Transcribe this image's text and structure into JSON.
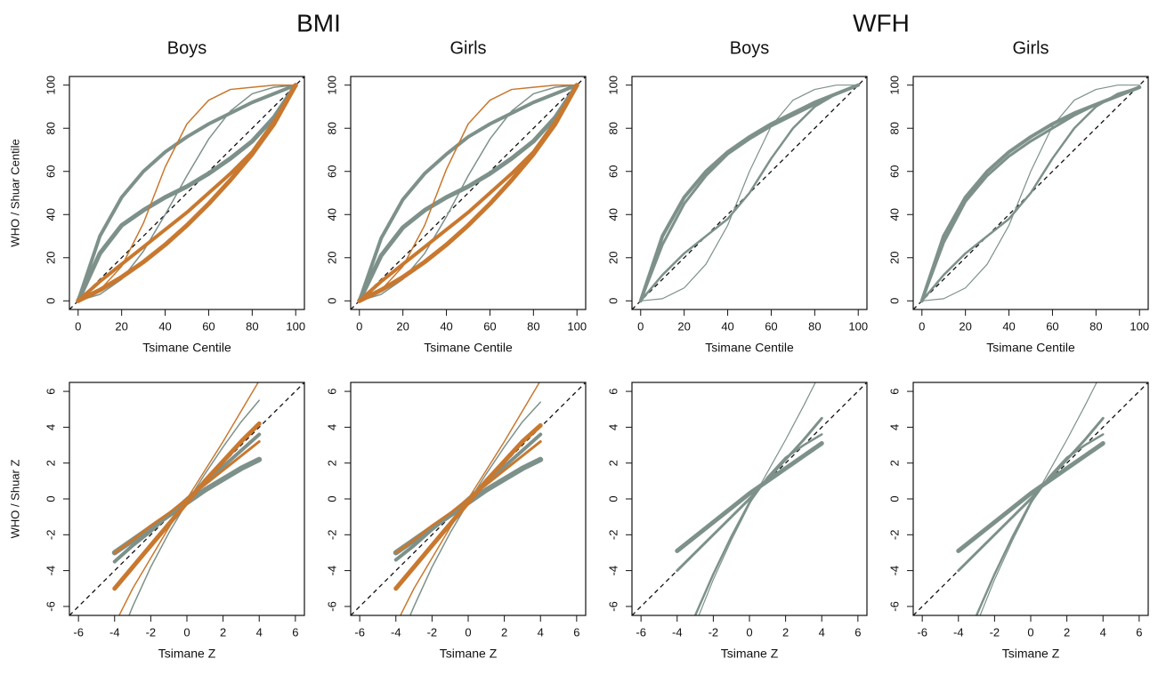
{
  "headers": [
    "BMI",
    "WFH"
  ],
  "chart_data": [
    {
      "type": "line",
      "title": "Boys",
      "xlabel": "Tsimane Centile",
      "ylabel": "WHO / Shuar Centile",
      "x": [
        0,
        10,
        20,
        30,
        40,
        50,
        60,
        70,
        80,
        90,
        100
      ],
      "xlim": [
        -4,
        104
      ],
      "ylim": [
        -4,
        104
      ],
      "xticks": [
        0,
        20,
        40,
        60,
        80,
        100
      ],
      "yticks": [
        0,
        20,
        40,
        60,
        80,
        100
      ],
      "series": [
        {
          "color": "#7d918a",
          "width": 4,
          "values": [
            0,
            30,
            48,
            60,
            69,
            76,
            82,
            87,
            92,
            96,
            100
          ]
        },
        {
          "color": "#7d918a",
          "width": 5,
          "values": [
            0,
            22,
            35,
            42,
            48,
            53,
            59,
            66,
            74,
            85,
            100
          ]
        },
        {
          "color": "#7d918a",
          "width": 1.5,
          "values": [
            0,
            3,
            10,
            23,
            40,
            58,
            75,
            88,
            96,
            99,
            100
          ]
        },
        {
          "color": "#c8782f",
          "width": 5,
          "values": [
            0,
            5,
            11,
            18,
            26,
            35,
            45,
            56,
            68,
            82,
            100
          ]
        },
        {
          "color": "#c8782f",
          "width": 4,
          "values": [
            0,
            9,
            17,
            25,
            33,
            41,
            50,
            59,
            69,
            83,
            100
          ]
        },
        {
          "color": "#c8782f",
          "width": 1.5,
          "values": [
            0,
            5,
            16,
            36,
            62,
            82,
            93,
            98,
            99,
            100,
            100
          ]
        }
      ]
    },
    {
      "type": "line",
      "title": "Girls",
      "xlabel": "Tsimane Centile",
      "x": [
        0,
        10,
        20,
        30,
        40,
        50,
        60,
        70,
        80,
        90,
        100
      ],
      "xlim": [
        -4,
        104
      ],
      "ylim": [
        -4,
        104
      ],
      "xticks": [
        0,
        20,
        40,
        60,
        80,
        100
      ],
      "yticks": [
        0,
        20,
        40,
        60,
        80,
        100
      ],
      "series": [
        {
          "color": "#7d918a",
          "width": 4,
          "values": [
            0,
            29,
            47,
            59,
            68,
            76,
            82,
            87,
            92,
            96,
            100
          ]
        },
        {
          "color": "#7d918a",
          "width": 5,
          "values": [
            0,
            21,
            34,
            42,
            48,
            53,
            59,
            66,
            74,
            85,
            100
          ]
        },
        {
          "color": "#7d918a",
          "width": 1.5,
          "values": [
            0,
            3,
            10,
            22,
            39,
            58,
            75,
            88,
            96,
            99,
            100
          ]
        },
        {
          "color": "#c8782f",
          "width": 5,
          "values": [
            0,
            5,
            11,
            18,
            26,
            35,
            45,
            56,
            68,
            82,
            100
          ]
        },
        {
          "color": "#c8782f",
          "width": 4,
          "values": [
            0,
            9,
            17,
            25,
            33,
            41,
            50,
            59,
            69,
            83,
            100
          ]
        },
        {
          "color": "#c8782f",
          "width": 1.5,
          "values": [
            0,
            5,
            16,
            35,
            61,
            82,
            93,
            98,
            99,
            100,
            100
          ]
        }
      ]
    },
    {
      "type": "line",
      "title": "Boys",
      "xlabel": "Tsimane Centile",
      "x": [
        0,
        10,
        20,
        30,
        40,
        50,
        60,
        70,
        80,
        90,
        100
      ],
      "xlim": [
        -4,
        104
      ],
      "ylim": [
        -4,
        104
      ],
      "xticks": [
        0,
        20,
        40,
        60,
        80,
        100
      ],
      "yticks": [
        0,
        20,
        40,
        60,
        80,
        100
      ],
      "series": [
        {
          "color": "#7d918a",
          "width": 4,
          "values": [
            0,
            30,
            48,
            60,
            69,
            76,
            82,
            87,
            92,
            96,
            100
          ]
        },
        {
          "color": "#7d918a",
          "width": 3,
          "values": [
            0,
            26,
            45,
            58,
            68,
            75,
            81,
            86,
            91,
            96,
            100
          ]
        },
        {
          "color": "#7d918a",
          "width": 2.5,
          "values": [
            0,
            12,
            22,
            30,
            38,
            50,
            66,
            80,
            90,
            96,
            100
          ]
        },
        {
          "color": "#7d918a",
          "width": 1.2,
          "values": [
            0,
            1,
            6,
            17,
            35,
            60,
            81,
            93,
            98,
            100,
            100
          ]
        }
      ]
    },
    {
      "type": "line",
      "title": "Girls",
      "xlabel": "Tsimane Centile",
      "x": [
        0,
        10,
        20,
        30,
        40,
        50,
        60,
        70,
        80,
        90,
        100
      ],
      "xlim": [
        -4,
        104
      ],
      "ylim": [
        -4,
        104
      ],
      "xticks": [
        0,
        20,
        40,
        60,
        80,
        100
      ],
      "yticks": [
        0,
        20,
        40,
        60,
        80,
        100
      ],
      "series": [
        {
          "color": "#7d918a",
          "width": 4,
          "values": [
            0,
            30,
            48,
            60,
            69,
            76,
            82,
            87,
            91,
            95,
            99
          ]
        },
        {
          "color": "#7d918a",
          "width": 3,
          "values": [
            0,
            27,
            46,
            58,
            67,
            74,
            80,
            86,
            91,
            95,
            99
          ]
        },
        {
          "color": "#7d918a",
          "width": 2.5,
          "values": [
            0,
            12,
            22,
            30,
            38,
            50,
            66,
            80,
            90,
            96,
            99
          ]
        },
        {
          "color": "#7d918a",
          "width": 1.2,
          "values": [
            0,
            1,
            6,
            17,
            35,
            60,
            81,
            93,
            98,
            100,
            100
          ]
        }
      ]
    },
    {
      "type": "line",
      "xlabel": "Tsimane Z",
      "ylabel": "WHO / Shuar Z",
      "x": [
        -4,
        -3,
        -2,
        -1,
        0,
        1,
        2,
        3,
        4
      ],
      "xlim": [
        -6.5,
        6.5
      ],
      "ylim": [
        -6.5,
        6.5
      ],
      "xticks": [
        -6,
        -4,
        -2,
        0,
        2,
        4,
        6
      ],
      "yticks": [
        -6,
        -4,
        -2,
        0,
        2,
        4,
        6
      ],
      "series": [
        {
          "color": "#7d918a",
          "width": 6,
          "values": [
            -3,
            -2.3,
            -1.6,
            -0.9,
            -0.2,
            0.5,
            1.1,
            1.7,
            2.2
          ]
        },
        {
          "color": "#7d918a",
          "width": 4,
          "values": [
            -3.5,
            -2.6,
            -1.8,
            -0.9,
            0,
            0.9,
            1.8,
            2.7,
            3.6
          ]
        },
        {
          "color": "#7d918a",
          "width": 1.5,
          "values": [
            -8.5,
            -6,
            -3.8,
            -1.9,
            -0.2,
            1.4,
            2.9,
            4.3,
            5.5
          ]
        },
        {
          "color": "#c8782f",
          "width": 5,
          "values": [
            -5,
            -3.8,
            -2.6,
            -1.4,
            -0.2,
            1,
            2.1,
            3.2,
            4.2
          ]
        },
        {
          "color": "#c8782f",
          "width": 3,
          "values": [
            -3,
            -2.3,
            -1.5,
            -0.8,
            0,
            0.8,
            1.6,
            2.4,
            3.2
          ]
        },
        {
          "color": "#c8782f",
          "width": 1.5,
          "values": [
            -7,
            -5,
            -3.3,
            -1.6,
            0,
            1.6,
            3.2,
            4.9,
            6.6
          ]
        }
      ]
    },
    {
      "type": "line",
      "xlabel": "Tsimane Z",
      "x": [
        -4,
        -3,
        -2,
        -1,
        0,
        1,
        2,
        3,
        4
      ],
      "xlim": [
        -6.5,
        6.5
      ],
      "ylim": [
        -6.5,
        6.5
      ],
      "xticks": [
        -6,
        -4,
        -2,
        0,
        2,
        4,
        6
      ],
      "yticks": [
        -6,
        -4,
        -2,
        0,
        2,
        4,
        6
      ],
      "series": [
        {
          "color": "#7d918a",
          "width": 6,
          "values": [
            -3,
            -2.3,
            -1.6,
            -0.9,
            -0.2,
            0.5,
            1.1,
            1.7,
            2.2
          ]
        },
        {
          "color": "#7d918a",
          "width": 4,
          "values": [
            -3.4,
            -2.6,
            -1.7,
            -0.9,
            0,
            0.9,
            1.8,
            2.7,
            3.6
          ]
        },
        {
          "color": "#7d918a",
          "width": 1.5,
          "values": [
            -8.4,
            -6,
            -3.8,
            -1.9,
            -0.2,
            1.4,
            2.9,
            4.3,
            5.4
          ]
        },
        {
          "color": "#c8782f",
          "width": 5,
          "values": [
            -5,
            -3.8,
            -2.6,
            -1.4,
            -0.2,
            1,
            2.1,
            3.2,
            4.1
          ]
        },
        {
          "color": "#c8782f",
          "width": 3,
          "values": [
            -3,
            -2.3,
            -1.5,
            -0.8,
            0,
            0.8,
            1.6,
            2.4,
            3.2
          ]
        },
        {
          "color": "#c8782f",
          "width": 1.5,
          "values": [
            -7,
            -5,
            -3.3,
            -1.6,
            0,
            1.6,
            3.2,
            4.9,
            6.6
          ]
        }
      ]
    },
    {
      "type": "line",
      "xlabel": "Tsimane Z",
      "x": [
        -4,
        -3,
        -2,
        -1,
        0,
        1,
        2,
        3,
        4
      ],
      "xlim": [
        -6.5,
        6.5
      ],
      "ylim": [
        -6.5,
        6.5
      ],
      "xticks": [
        -6,
        -4,
        -2,
        0,
        2,
        4,
        6
      ],
      "yticks": [
        -6,
        -4,
        -2,
        0,
        2,
        4,
        6
      ],
      "series": [
        {
          "color": "#7d918a",
          "width": 5,
          "values": [
            -2.9,
            -2.1,
            -1.3,
            -0.5,
            0.3,
            1,
            1.7,
            2.4,
            3.1
          ]
        },
        {
          "color": "#7d918a",
          "width": 3,
          "values": [
            -4,
            -3,
            -2,
            -1,
            0,
            1.1,
            2.2,
            3.3,
            4.5
          ]
        },
        {
          "color": "#7d918a",
          "width": 2.5,
          "values": [
            -9,
            -6.5,
            -4.2,
            -2.1,
            -0.2,
            1.2,
            2.3,
            3,
            3.6
          ]
        },
        {
          "color": "#7d918a",
          "width": 1.2,
          "values": [
            -10,
            -7,
            -4.5,
            -2.3,
            -0.3,
            1.5,
            3.3,
            5.2,
            7.2
          ]
        }
      ]
    },
    {
      "type": "line",
      "xlabel": "Tsimane Z",
      "x": [
        -4,
        -3,
        -2,
        -1,
        0,
        1,
        2,
        3,
        4
      ],
      "xlim": [
        -6.5,
        6.5
      ],
      "ylim": [
        -6.5,
        6.5
      ],
      "xticks": [
        -6,
        -4,
        -2,
        0,
        2,
        4,
        6
      ],
      "yticks": [
        -6,
        -4,
        -2,
        0,
        2,
        4,
        6
      ],
      "series": [
        {
          "color": "#7d918a",
          "width": 5,
          "values": [
            -2.9,
            -2.1,
            -1.3,
            -0.5,
            0.3,
            1,
            1.7,
            2.4,
            3.1
          ]
        },
        {
          "color": "#7d918a",
          "width": 3,
          "values": [
            -4,
            -3,
            -2,
            -1,
            0,
            1.1,
            2.2,
            3.3,
            4.5
          ]
        },
        {
          "color": "#7d918a",
          "width": 2.5,
          "values": [
            -9,
            -6.5,
            -4.2,
            -2.1,
            -0.2,
            1.2,
            2.3,
            3,
            3.6
          ]
        },
        {
          "color": "#7d918a",
          "width": 1.2,
          "values": [
            -10,
            -7,
            -4.5,
            -2.3,
            -0.3,
            1.5,
            3.3,
            5.2,
            7.2
          ]
        }
      ]
    }
  ]
}
